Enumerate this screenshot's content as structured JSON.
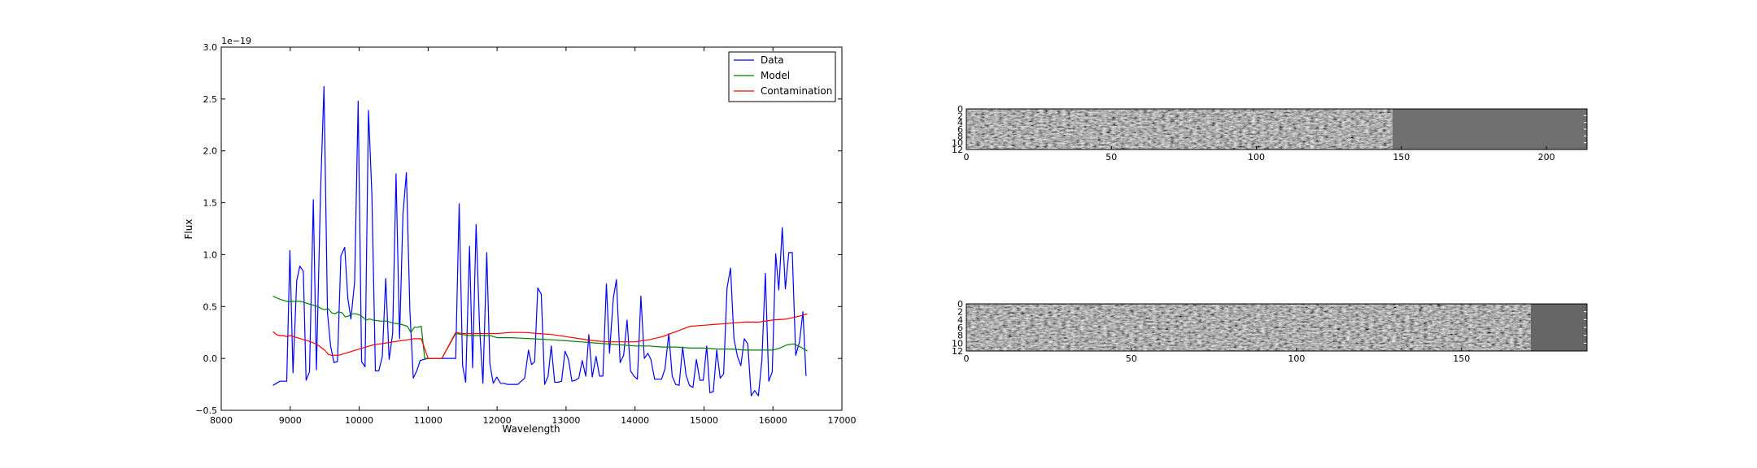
{
  "chart_data": [
    {
      "type": "line",
      "xlabel": "Wavelength",
      "ylabel": "Flux",
      "offset_label": "1e−19",
      "xlim": [
        8000,
        17000
      ],
      "ylim": [
        -0.5,
        3.0
      ],
      "xticks": [
        8000,
        9000,
        10000,
        11000,
        12000,
        13000,
        14000,
        15000,
        16000,
        17000
      ],
      "yticks": [
        -0.5,
        0.0,
        0.5,
        1.0,
        1.5,
        2.0,
        2.5,
        3.0
      ],
      "ytick_labels": [
        "−0.5",
        "0.0",
        "0.5",
        "1.0",
        "1.5",
        "2.0",
        "2.5",
        "3.0"
      ],
      "legend": "top-right",
      "series": [
        {
          "name": "Data",
          "color": "#0000ff",
          "x": [
            8750,
            8850,
            8950,
            8995,
            9040,
            9095,
            9140,
            9190,
            9230,
            9280,
            9335,
            9380,
            9440,
            9490,
            9540,
            9585,
            9635,
            9685,
            9735,
            9790,
            9835,
            9880,
            9935,
            9985,
            10035,
            10085,
            10135,
            10185,
            10235,
            10285,
            10335,
            10385,
            10435,
            10485,
            10535,
            10585,
            10635,
            10685,
            10735,
            10785,
            10835,
            10885,
            11000,
            11200,
            11400,
            11450,
            11500,
            11545,
            11600,
            11645,
            11695,
            11745,
            11795,
            11850,
            11895,
            11945,
            11995,
            12050,
            12100,
            12150,
            12200,
            12300,
            12400,
            12455,
            12500,
            12545,
            12590,
            12640,
            12690,
            12740,
            12785,
            12835,
            12885,
            12935,
            12985,
            13035,
            13085,
            13135,
            13185,
            13235,
            13285,
            13330,
            13380,
            13435,
            13485,
            13535,
            13585,
            13630,
            13685,
            13730,
            13785,
            13835,
            13885,
            13935,
            13985,
            14035,
            14085,
            14135,
            14185,
            14230,
            14285,
            14335,
            14385,
            14435,
            14490,
            14540,
            14590,
            14640,
            14690,
            14740,
            14790,
            14840,
            14890,
            14940,
            14990,
            15040,
            15085,
            15135,
            15185,
            15235,
            15285,
            15335,
            15385,
            15435,
            15485,
            15535,
            15585,
            15635,
            15685,
            15735,
            15790,
            15840,
            15890,
            15940,
            15990,
            16040,
            16085,
            16135,
            16180,
            16230,
            16280,
            16330,
            16385,
            16435,
            16480
          ],
          "y": [
            -0.26,
            -0.22,
            -0.22,
            1.04,
            -0.14,
            0.75,
            0.89,
            0.84,
            -0.21,
            -0.13,
            1.53,
            -0.11,
            1.61,
            2.62,
            0.44,
            0.12,
            -0.04,
            -0.03,
            0.99,
            1.07,
            0.58,
            0.38,
            0.74,
            2.48,
            -0.03,
            -0.08,
            2.39,
            1.58,
            -0.12,
            -0.12,
            0.02,
            0.77,
            -0.01,
            0.24,
            1.78,
            0.19,
            1.39,
            1.79,
            0.46,
            -0.19,
            -0.12,
            -0.02,
            0.0,
            0.0,
            0.0,
            1.49,
            -0.07,
            -0.23,
            1.08,
            -0.09,
            1.29,
            0.31,
            -0.24,
            1.02,
            -0.05,
            -0.24,
            -0.18,
            -0.24,
            -0.24,
            -0.25,
            -0.25,
            -0.25,
            -0.19,
            0.08,
            -0.06,
            -0.03,
            0.68,
            0.62,
            -0.25,
            -0.17,
            0.12,
            -0.23,
            -0.23,
            -0.22,
            0.07,
            -0.01,
            -0.22,
            -0.21,
            -0.19,
            -0.02,
            -0.17,
            0.23,
            -0.18,
            0.02,
            -0.17,
            -0.17,
            0.72,
            0.05,
            0.58,
            0.76,
            -0.04,
            0.03,
            0.37,
            -0.12,
            -0.17,
            -0.2,
            0.6,
            0.0,
            0.05,
            -0.01,
            -0.2,
            -0.2,
            -0.2,
            -0.1,
            0.24,
            -0.17,
            -0.25,
            -0.26,
            0.11,
            -0.16,
            -0.26,
            -0.28,
            -0.01,
            -0.21,
            -0.21,
            0.12,
            -0.33,
            -0.32,
            0.08,
            -0.19,
            -0.15,
            0.68,
            0.87,
            0.19,
            0.02,
            -0.07,
            0.19,
            0.14,
            -0.36,
            -0.31,
            -0.36,
            -0.01,
            0.82,
            -0.22,
            -0.13,
            1.01,
            0.66,
            1.26,
            0.67,
            1.02,
            1.02,
            0.03,
            0.16,
            0.45,
            -0.17
          ]
        },
        {
          "name": "Model",
          "color": "#008000",
          "x": [
            8750,
            8850,
            8950,
            9050,
            9150,
            9250,
            9350,
            9400,
            9450,
            9500,
            9550,
            9600,
            9650,
            9700,
            9750,
            9800,
            9850,
            9900,
            9950,
            10000,
            10050,
            10100,
            10150,
            10200,
            10300,
            10400,
            10500,
            10600,
            10700,
            10750,
            10800,
            10850,
            10900,
            10950,
            11000,
            11200,
            11400,
            11500,
            11600,
            11700,
            11800,
            11900,
            12000,
            12100,
            12200,
            12500,
            12800,
            13000,
            13200,
            13400,
            13600,
            13800,
            14000,
            14200,
            14400,
            14600,
            14800,
            15000,
            15200,
            15400,
            15600,
            15800,
            15900,
            16000,
            16100,
            16200,
            16300,
            16400,
            16500
          ],
          "y": [
            0.6,
            0.57,
            0.55,
            0.55,
            0.55,
            0.53,
            0.51,
            0.5,
            0.48,
            0.47,
            0.48,
            0.44,
            0.43,
            0.45,
            0.44,
            0.4,
            0.41,
            0.43,
            0.43,
            0.42,
            0.4,
            0.37,
            0.38,
            0.37,
            0.36,
            0.36,
            0.34,
            0.33,
            0.31,
            0.25,
            0.3,
            0.3,
            0.31,
            0.0,
            0.0,
            0.0,
            0.24,
            0.23,
            0.22,
            0.22,
            0.22,
            0.22,
            0.2,
            0.2,
            0.2,
            0.19,
            0.18,
            0.17,
            0.16,
            0.15,
            0.14,
            0.13,
            0.12,
            0.12,
            0.11,
            0.11,
            0.1,
            0.1,
            0.09,
            0.09,
            0.08,
            0.08,
            0.08,
            0.08,
            0.1,
            0.13,
            0.14,
            0.11,
            0.07
          ]
        },
        {
          "name": "Contamination",
          "color": "#ff0000",
          "x": [
            8750,
            8800,
            8850,
            8900,
            8950,
            9000,
            9050,
            9100,
            9150,
            9200,
            9300,
            9400,
            9500,
            9550,
            9600,
            9700,
            9800,
            9900,
            10000,
            10100,
            10200,
            10300,
            10400,
            10500,
            10600,
            10700,
            10800,
            10900,
            11000,
            11200,
            11400,
            11500,
            11600,
            11800,
            12000,
            12200,
            12400,
            12600,
            12800,
            13000,
            13200,
            13400,
            13600,
            13800,
            14000,
            14200,
            14400,
            14600,
            14800,
            15000,
            15200,
            15400,
            15600,
            15800,
            16000,
            16200,
            16400,
            16500
          ],
          "y": [
            0.26,
            0.23,
            0.22,
            0.22,
            0.21,
            0.22,
            0.21,
            0.2,
            0.19,
            0.18,
            0.16,
            0.13,
            0.08,
            0.04,
            0.03,
            0.03,
            0.05,
            0.07,
            0.09,
            0.11,
            0.13,
            0.14,
            0.15,
            0.16,
            0.17,
            0.18,
            0.19,
            0.19,
            0.0,
            0.0,
            0.25,
            0.24,
            0.24,
            0.24,
            0.24,
            0.25,
            0.25,
            0.24,
            0.23,
            0.21,
            0.19,
            0.17,
            0.16,
            0.16,
            0.16,
            0.18,
            0.21,
            0.26,
            0.31,
            0.32,
            0.33,
            0.34,
            0.35,
            0.35,
            0.37,
            0.38,
            0.41,
            0.43
          ]
        }
      ]
    },
    {
      "type": "heatmap",
      "xlim": [
        0,
        214
      ],
      "ylim": [
        12,
        0
      ],
      "xticks": [
        0,
        50,
        100,
        150,
        200
      ],
      "yticks": [
        0,
        2,
        4,
        6,
        8,
        10,
        12
      ],
      "colormap": "gray",
      "data_extent_x": 147
    },
    {
      "type": "heatmap",
      "xlim": [
        0,
        188
      ],
      "ylim": [
        12,
        0
      ],
      "xticks": [
        0,
        50,
        100,
        150
      ],
      "yticks": [
        0,
        2,
        4,
        6,
        8,
        10,
        12
      ],
      "colormap": "gray",
      "data_extent_x": 171
    }
  ]
}
